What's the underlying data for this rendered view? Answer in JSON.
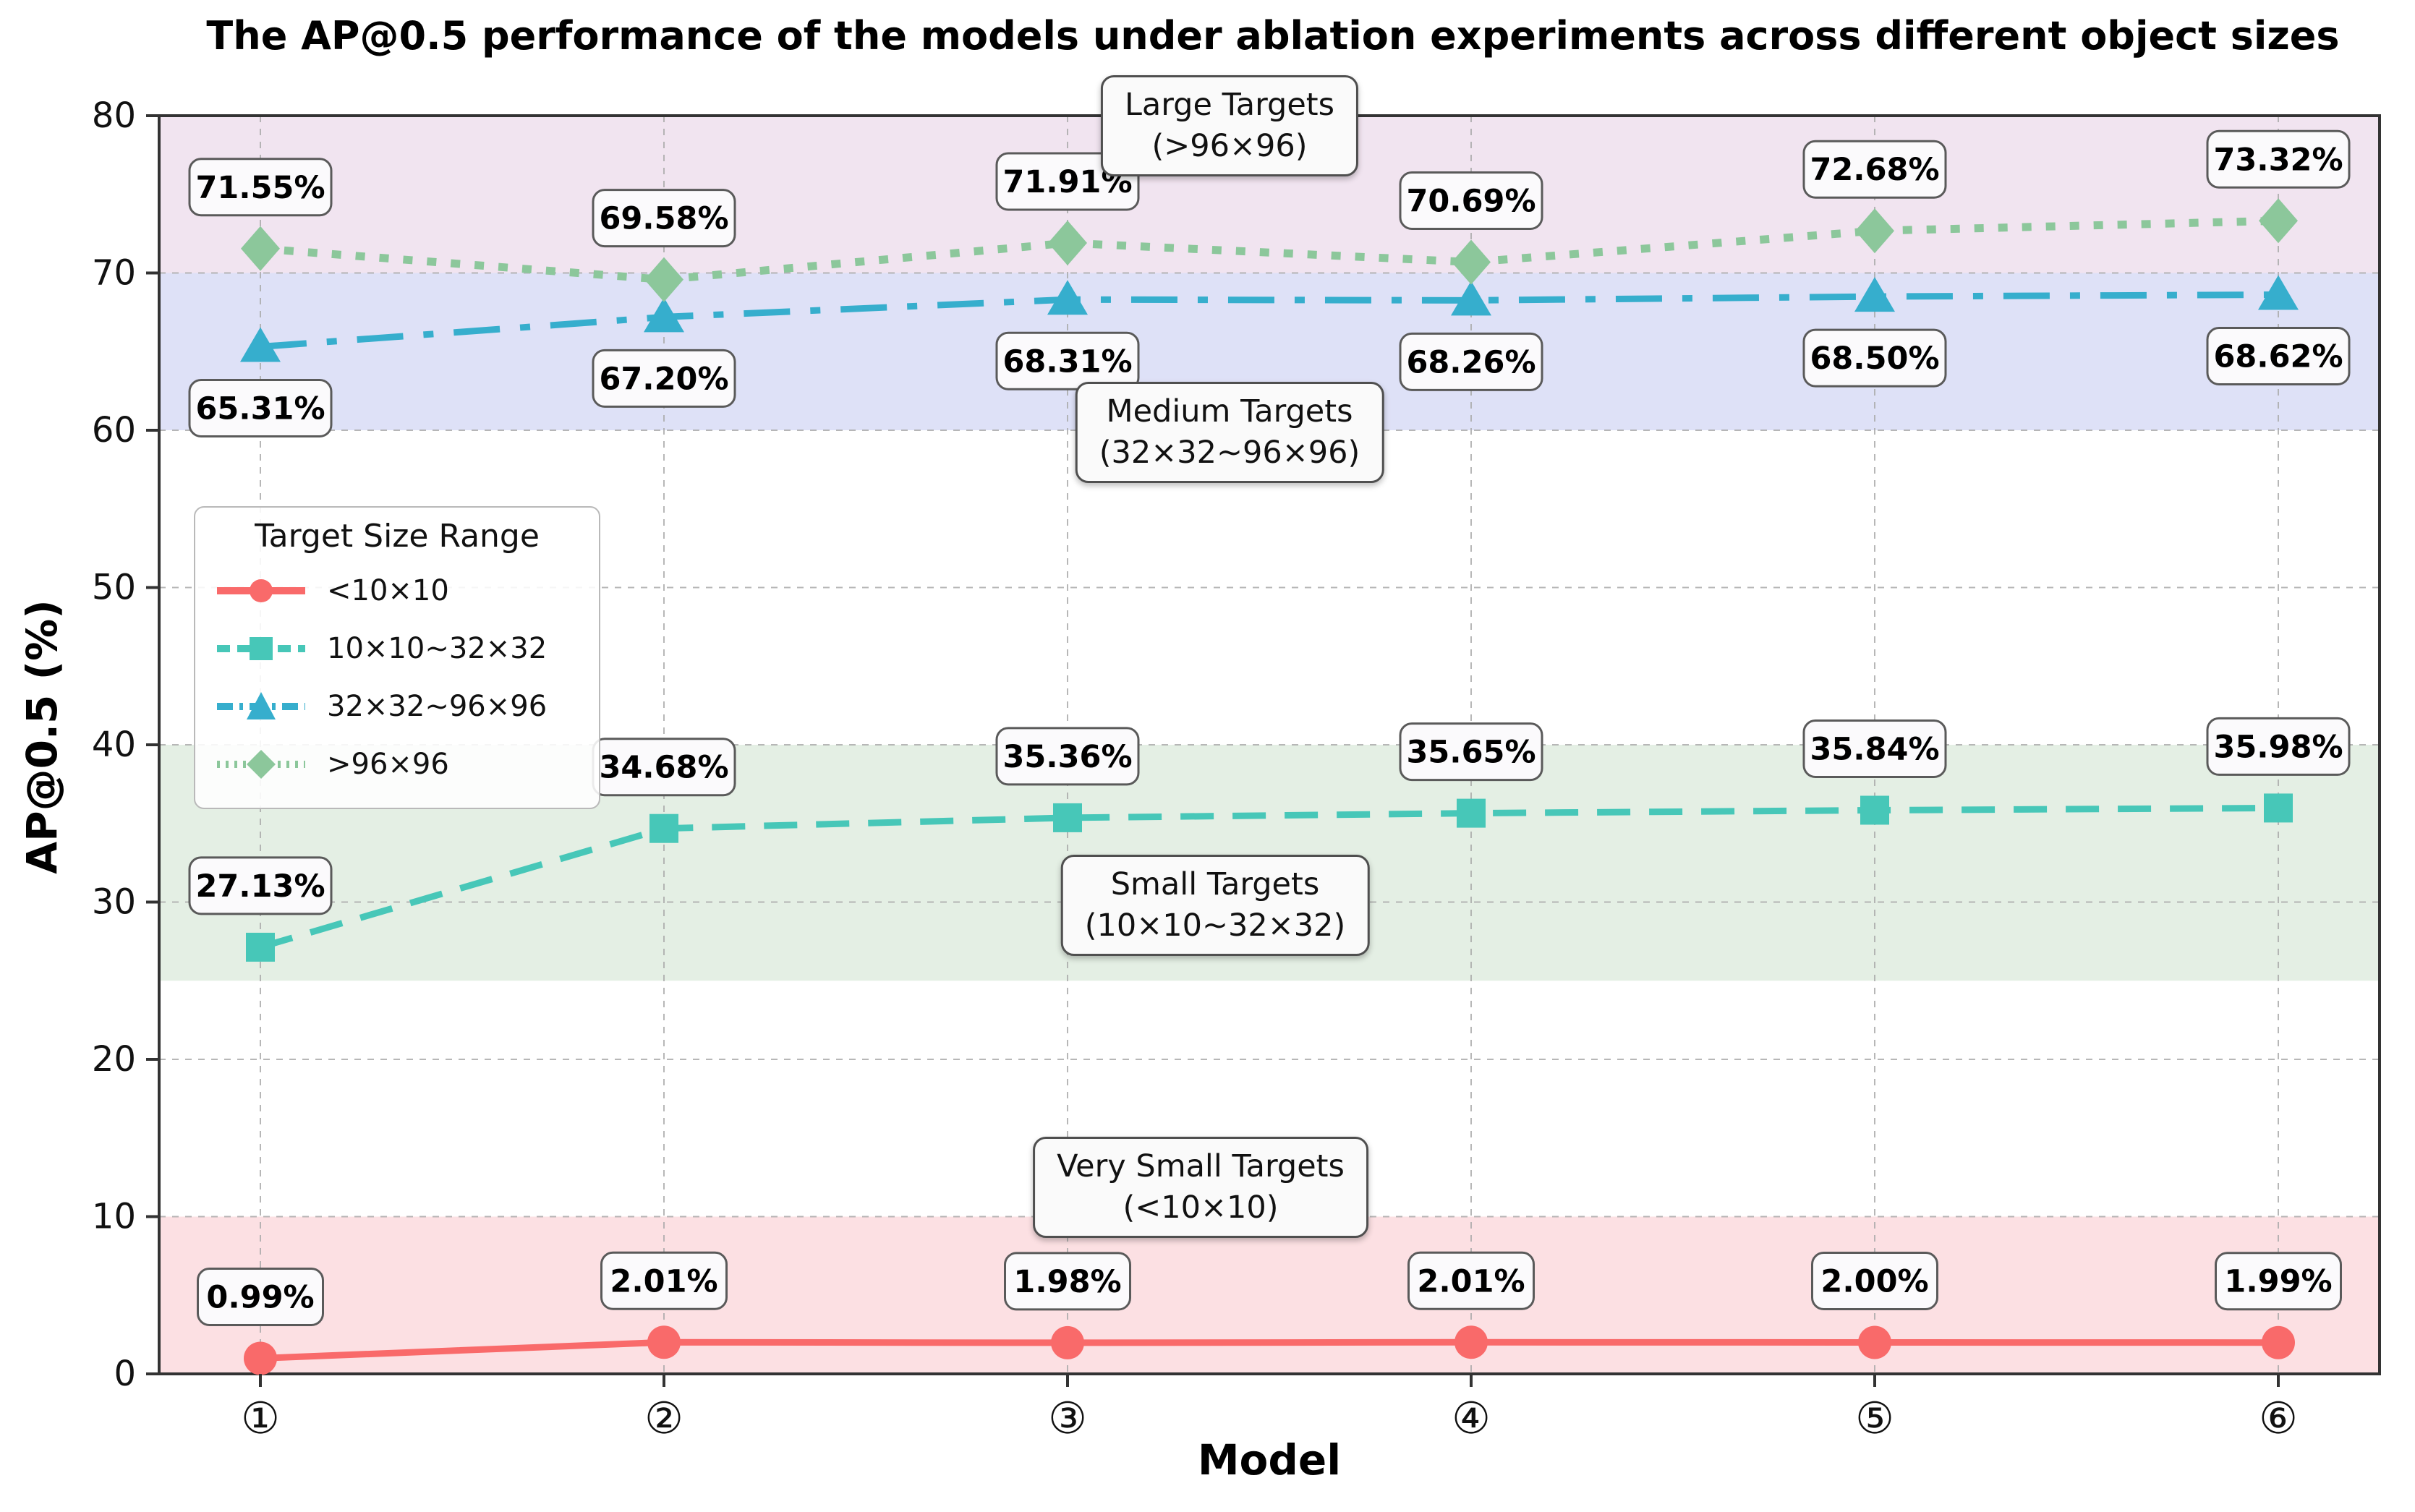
{
  "chart_data": {
    "type": "line",
    "title": "The AP@0.5 performance of the models under ablation experiments across different object sizes",
    "xlabel": "Model",
    "ylabel": "AP@0.5 (%)",
    "ylim": [
      0,
      80
    ],
    "yticks": [
      0,
      10,
      20,
      30,
      40,
      50,
      60,
      70,
      80
    ],
    "categories": [
      "①",
      "②",
      "③",
      "④",
      "⑤",
      "⑥"
    ],
    "grid": true,
    "legend_position": "upper left",
    "legend_title": "Target Size Range",
    "series": [
      {
        "name": "<10×10",
        "color": "#f96a6a",
        "marker": "circle",
        "dash": "solid",
        "label_side": "above",
        "values": [
          0.99,
          2.01,
          1.98,
          2.01,
          2.0,
          1.99
        ],
        "labels": [
          "0.99%",
          "2.01%",
          "1.98%",
          "2.01%",
          "2.00%",
          "1.99%"
        ]
      },
      {
        "name": "10×10~32×32",
        "color": "#47c7b8",
        "marker": "square",
        "dash": "dashed",
        "label_side": "above",
        "values": [
          27.13,
          34.68,
          35.36,
          35.65,
          35.84,
          35.98
        ],
        "labels": [
          "27.13%",
          "34.68%",
          "35.36%",
          "35.65%",
          "35.84%",
          "35.98%"
        ]
      },
      {
        "name": "32×32~96×96",
        "color": "#36aecd",
        "marker": "triangle",
        "dash": "dashdot",
        "label_side": "below",
        "values": [
          65.31,
          67.2,
          68.31,
          68.26,
          68.5,
          68.62
        ],
        "labels": [
          "65.31%",
          "67.20%",
          "68.31%",
          "68.26%",
          "68.50%",
          "68.62%"
        ]
      },
      {
        "name": ">96×96",
        "color": "#8cc79b",
        "marker": "diamond",
        "dash": "dotted",
        "label_side": "above",
        "values": [
          71.55,
          69.58,
          71.91,
          70.69,
          72.68,
          73.32
        ],
        "labels": [
          "71.55%",
          "69.58%",
          "71.91%",
          "70.69%",
          "72.68%",
          "73.32%"
        ]
      }
    ],
    "bands": [
      {
        "label": "Large Targets",
        "sublabel": "(>96×96)",
        "from": 70,
        "to": 80,
        "color": "#f1e4f0"
      },
      {
        "label": "Medium Targets",
        "sublabel": "(32×32~96×96)",
        "from": 60,
        "to": 70,
        "color": "#dee1f7"
      },
      {
        "label": "Small Targets",
        "sublabel": "(10×10~32×32)",
        "from": 25,
        "to": 40,
        "color": "#e4efe4"
      },
      {
        "label": "Very Small Targets",
        "sublabel": "(<10×10)",
        "from": 0,
        "to": 10,
        "color": "#fce0e3"
      }
    ]
  }
}
